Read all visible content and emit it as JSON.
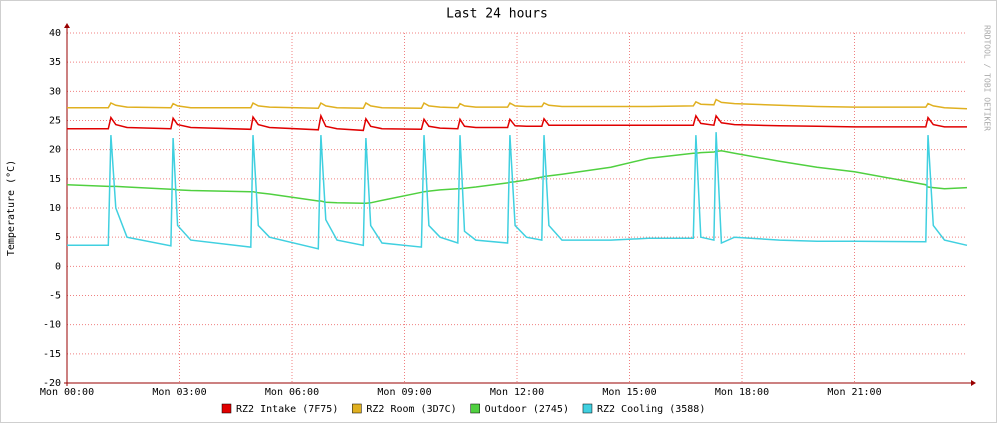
{
  "chart_data": {
    "type": "line",
    "title": "Last 24 hours",
    "y_label": "Temperature (°C)",
    "watermark": "RRDTOOL / TOBI OETIKER",
    "x": [
      0,
      1.1,
      1.17,
      1.3,
      1.6,
      2.77,
      2.83,
      2.95,
      3.3,
      4.9,
      4.96,
      5.1,
      5.4,
      6.7,
      6.77,
      6.9,
      7.2,
      7.9,
      7.97,
      8.1,
      8.4,
      9.45,
      9.52,
      9.65,
      9.95,
      10.42,
      10.48,
      10.6,
      10.9,
      11.75,
      11.81,
      11.95,
      12.25,
      12.66,
      12.72,
      12.85,
      13.2,
      14.5,
      15.5,
      16.7,
      16.77,
      16.9,
      17.25,
      17.31,
      17.45,
      17.8,
      19,
      20,
      21,
      22.9,
      22.96,
      23.1,
      23.4,
      24
    ],
    "xlim": [
      0,
      24
    ],
    "xticks": [
      {
        "value": 0,
        "label": "Mon 00:00"
      },
      {
        "value": 3,
        "label": "Mon 03:00"
      },
      {
        "value": 6,
        "label": "Mon 06:00"
      },
      {
        "value": 9,
        "label": "Mon 09:00"
      },
      {
        "value": 12,
        "label": "Mon 12:00"
      },
      {
        "value": 15,
        "label": "Mon 15:00"
      },
      {
        "value": 18,
        "label": "Mon 18:00"
      },
      {
        "value": 21,
        "label": "Mon 21:00"
      }
    ],
    "ylim": [
      -20,
      40
    ],
    "yticks": [
      -20,
      -15,
      -10,
      -5,
      0,
      5,
      10,
      15,
      20,
      25,
      30,
      35,
      40
    ],
    "grid": true,
    "series": [
      {
        "name": "RZ2 Intake (7F75)",
        "color": "#e00000",
        "values": [
          23.6,
          23.6,
          25.5,
          24.3,
          23.8,
          23.6,
          25.4,
          24.3,
          23.8,
          23.5,
          25.6,
          24.3,
          23.8,
          23.4,
          25.8,
          24,
          23.6,
          23.3,
          25.3,
          24,
          23.6,
          23.5,
          25.2,
          24,
          23.7,
          23.6,
          25.2,
          24,
          23.8,
          23.8,
          25.2,
          24.1,
          24,
          24,
          25.3,
          24.2,
          24.2,
          24.2,
          24.2,
          24.2,
          25.8,
          24.5,
          24.2,
          25.8,
          24.6,
          24.3,
          24.1,
          24,
          23.9,
          23.9,
          25.5,
          24.3,
          23.9,
          23.9
        ]
      },
      {
        "name": "RZ2 Room (3D7C)",
        "color": "#e0b020",
        "values": [
          27.2,
          27.2,
          28.0,
          27.6,
          27.3,
          27.2,
          27.9,
          27.5,
          27.2,
          27.2,
          28,
          27.5,
          27.3,
          27.1,
          28,
          27.5,
          27.2,
          27.1,
          28,
          27.5,
          27.2,
          27.1,
          28,
          27.5,
          27.3,
          27.2,
          27.9,
          27.5,
          27.3,
          27.3,
          28,
          27.5,
          27.4,
          27.4,
          28,
          27.6,
          27.4,
          27.4,
          27.4,
          27.5,
          28.2,
          27.8,
          27.7,
          28.6,
          28.1,
          27.9,
          27.6,
          27.4,
          27.3,
          27.3,
          27.9,
          27.5,
          27.2,
          27
        ]
      },
      {
        "name": "Outdoor (2745)",
        "color": "#50d040",
        "values": [
          14,
          13.7,
          13.7,
          13.7,
          13.6,
          13.2,
          13.2,
          13.1,
          13,
          12.8,
          12.8,
          12.6,
          12.4,
          11.2,
          11.2,
          11,
          10.9,
          10.8,
          10.8,
          10.9,
          11.3,
          12.7,
          12.8,
          12.9,
          13.1,
          13.3,
          13.3,
          13.4,
          13.6,
          14.3,
          14.4,
          14.5,
          14.8,
          15.3,
          15.4,
          15.5,
          15.8,
          17,
          18.5,
          19.4,
          19.4,
          19.5,
          19.6,
          19.7,
          19.8,
          19.4,
          18,
          17,
          16.2,
          14,
          13.6,
          13.5,
          13.3,
          13.5
        ]
      },
      {
        "name": "RZ2 Cooling (3588)",
        "color": "#40d0e0",
        "values": [
          3.6,
          3.6,
          22.5,
          10,
          5,
          3.5,
          22,
          7,
          4.5,
          3.3,
          22.5,
          7,
          5,
          3.0,
          22.5,
          8,
          4.5,
          3.6,
          22,
          7,
          4,
          3.3,
          22.5,
          7,
          5,
          4,
          22.5,
          6,
          4.5,
          4,
          22.5,
          7,
          5,
          4.5,
          22.5,
          7,
          4.5,
          4.5,
          4.8,
          4.8,
          22.5,
          5,
          4.5,
          23,
          4,
          5,
          4.5,
          4.3,
          4.3,
          4.2,
          22.5,
          7,
          4.5,
          3.6
        ]
      }
    ]
  }
}
